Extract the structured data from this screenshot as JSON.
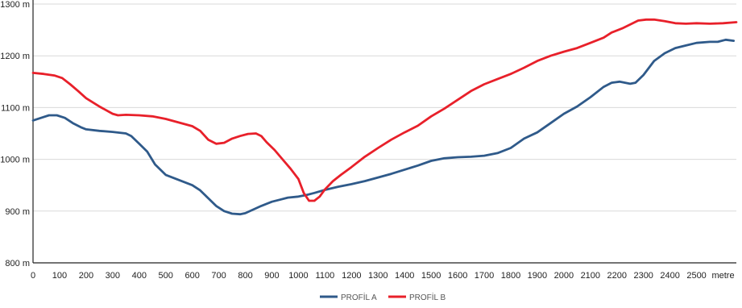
{
  "chart_data": {
    "type": "line",
    "x_unit_label": "metre",
    "xlim": [
      0,
      2650
    ],
    "ylim": [
      800,
      1300
    ],
    "x_ticks": [
      0,
      100,
      200,
      300,
      400,
      500,
      600,
      700,
      800,
      900,
      1000,
      1100,
      1200,
      1300,
      1400,
      1500,
      1600,
      1700,
      1800,
      1900,
      2000,
      2100,
      2200,
      2300,
      2400,
      2500
    ],
    "y_ticks": [
      {
        "value": 800,
        "label": "800 m"
      },
      {
        "value": 900,
        "label": "900 m"
      },
      {
        "value": 1000,
        "label": "1000 m"
      },
      {
        "value": 1100,
        "label": "1100 m"
      },
      {
        "value": 1200,
        "label": "1200 m"
      },
      {
        "value": 1300,
        "label": "1300 m"
      }
    ],
    "grid": "horizontal",
    "legend_position": "bottom-center",
    "series": [
      {
        "name": "PROFİL A",
        "color": "#2f5a8a",
        "points": [
          [
            0,
            1075
          ],
          [
            30,
            1080
          ],
          [
            60,
            1085
          ],
          [
            90,
            1085
          ],
          [
            120,
            1080
          ],
          [
            150,
            1070
          ],
          [
            180,
            1062
          ],
          [
            200,
            1058
          ],
          [
            250,
            1055
          ],
          [
            300,
            1053
          ],
          [
            350,
            1050
          ],
          [
            370,
            1045
          ],
          [
            400,
            1030
          ],
          [
            430,
            1015
          ],
          [
            460,
            990
          ],
          [
            500,
            970
          ],
          [
            550,
            960
          ],
          [
            600,
            950
          ],
          [
            630,
            940
          ],
          [
            660,
            925
          ],
          [
            690,
            910
          ],
          [
            720,
            900
          ],
          [
            750,
            895
          ],
          [
            780,
            894
          ],
          [
            800,
            896
          ],
          [
            830,
            903
          ],
          [
            860,
            910
          ],
          [
            900,
            918
          ],
          [
            930,
            922
          ],
          [
            960,
            926
          ],
          [
            1000,
            928
          ],
          [
            1030,
            931
          ],
          [
            1060,
            935
          ],
          [
            1100,
            941
          ],
          [
            1150,
            947
          ],
          [
            1200,
            952
          ],
          [
            1250,
            958
          ],
          [
            1300,
            965
          ],
          [
            1350,
            972
          ],
          [
            1400,
            980
          ],
          [
            1450,
            988
          ],
          [
            1500,
            997
          ],
          [
            1550,
            1002
          ],
          [
            1600,
            1004
          ],
          [
            1650,
            1005
          ],
          [
            1700,
            1007
          ],
          [
            1750,
            1012
          ],
          [
            1800,
            1022
          ],
          [
            1850,
            1040
          ],
          [
            1900,
            1052
          ],
          [
            1950,
            1070
          ],
          [
            2000,
            1088
          ],
          [
            2050,
            1102
          ],
          [
            2100,
            1120
          ],
          [
            2150,
            1140
          ],
          [
            2180,
            1148
          ],
          [
            2210,
            1150
          ],
          [
            2250,
            1146
          ],
          [
            2270,
            1148
          ],
          [
            2300,
            1163
          ],
          [
            2340,
            1190
          ],
          [
            2380,
            1205
          ],
          [
            2420,
            1215
          ],
          [
            2460,
            1220
          ],
          [
            2500,
            1225
          ],
          [
            2550,
            1227
          ],
          [
            2580,
            1227
          ],
          [
            2610,
            1231
          ],
          [
            2640,
            1229
          ]
        ]
      },
      {
        "name": "PROFİL B",
        "color": "#e8202a",
        "points": [
          [
            0,
            1167
          ],
          [
            40,
            1165
          ],
          [
            80,
            1162
          ],
          [
            110,
            1157
          ],
          [
            140,
            1145
          ],
          [
            170,
            1132
          ],
          [
            200,
            1118
          ],
          [
            250,
            1102
          ],
          [
            300,
            1088
          ],
          [
            320,
            1085
          ],
          [
            350,
            1086
          ],
          [
            400,
            1085
          ],
          [
            450,
            1083
          ],
          [
            500,
            1078
          ],
          [
            550,
            1071
          ],
          [
            600,
            1064
          ],
          [
            630,
            1055
          ],
          [
            660,
            1038
          ],
          [
            690,
            1030
          ],
          [
            720,
            1032
          ],
          [
            750,
            1040
          ],
          [
            780,
            1045
          ],
          [
            810,
            1049
          ],
          [
            840,
            1050
          ],
          [
            860,
            1045
          ],
          [
            880,
            1033
          ],
          [
            910,
            1018
          ],
          [
            940,
            1000
          ],
          [
            970,
            982
          ],
          [
            1000,
            962
          ],
          [
            1020,
            935
          ],
          [
            1040,
            920
          ],
          [
            1060,
            920
          ],
          [
            1080,
            928
          ],
          [
            1100,
            942
          ],
          [
            1130,
            958
          ],
          [
            1160,
            970
          ],
          [
            1200,
            985
          ],
          [
            1250,
            1005
          ],
          [
            1300,
            1022
          ],
          [
            1350,
            1038
          ],
          [
            1400,
            1052
          ],
          [
            1450,
            1065
          ],
          [
            1500,
            1083
          ],
          [
            1550,
            1098
          ],
          [
            1600,
            1115
          ],
          [
            1650,
            1132
          ],
          [
            1700,
            1145
          ],
          [
            1750,
            1155
          ],
          [
            1800,
            1165
          ],
          [
            1850,
            1177
          ],
          [
            1900,
            1190
          ],
          [
            1950,
            1200
          ],
          [
            2000,
            1208
          ],
          [
            2050,
            1215
          ],
          [
            2100,
            1225
          ],
          [
            2150,
            1235
          ],
          [
            2180,
            1245
          ],
          [
            2220,
            1253
          ],
          [
            2260,
            1263
          ],
          [
            2280,
            1268
          ],
          [
            2310,
            1270
          ],
          [
            2340,
            1270
          ],
          [
            2380,
            1267
          ],
          [
            2420,
            1263
          ],
          [
            2460,
            1262
          ],
          [
            2500,
            1263
          ],
          [
            2550,
            1262
          ],
          [
            2600,
            1263
          ],
          [
            2650,
            1265
          ]
        ]
      }
    ]
  }
}
